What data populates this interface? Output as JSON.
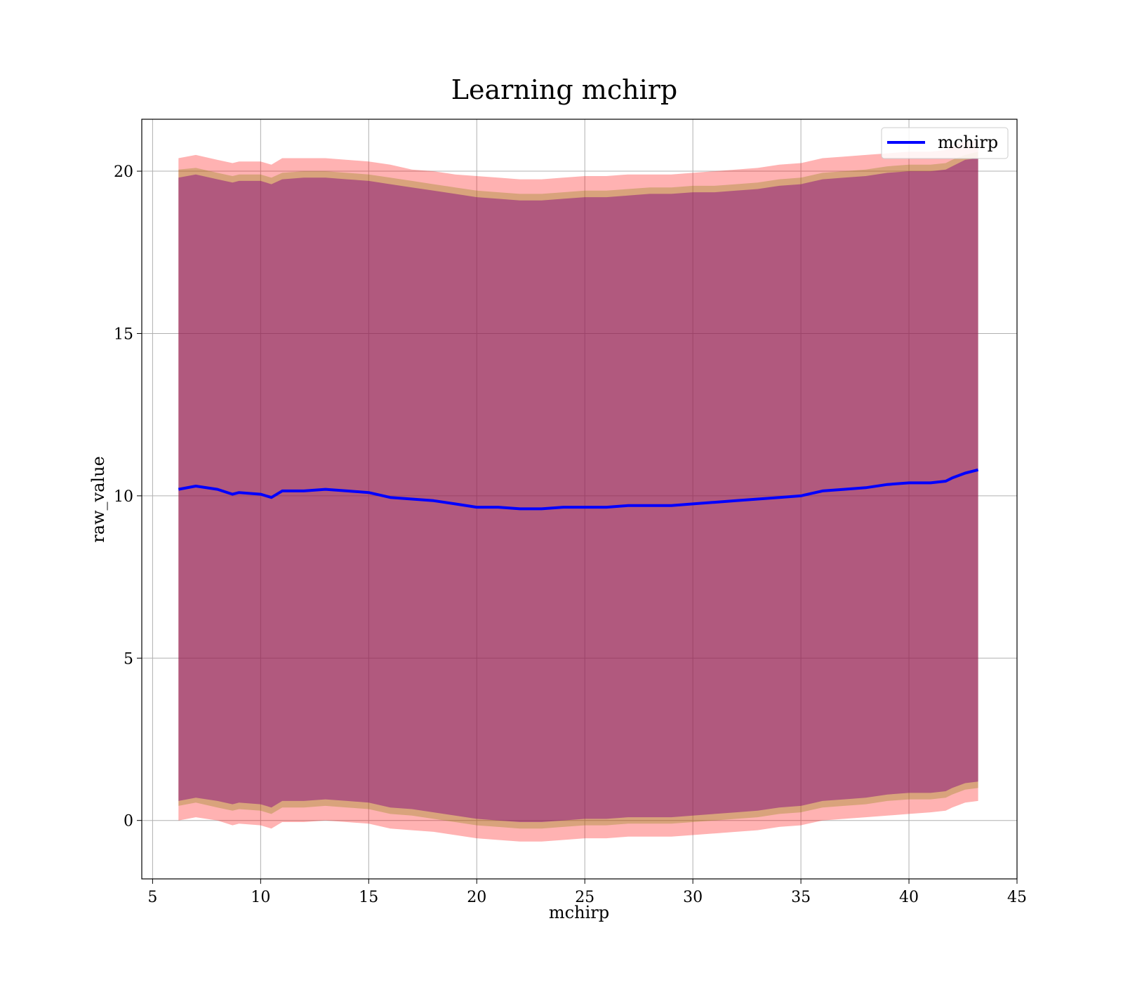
{
  "chart_data": {
    "type": "line",
    "title": "Learning mchirp",
    "xlabel": "mchirp",
    "ylabel": "raw_value",
    "xlim": [
      4.5,
      45
    ],
    "ylim": [
      -1.8,
      21.6
    ],
    "xticks": [
      5,
      10,
      15,
      20,
      25,
      30,
      35,
      40,
      45
    ],
    "yticks": [
      0,
      5,
      10,
      15,
      20
    ],
    "xtick_labels": [
      "5",
      "10",
      "15",
      "20",
      "25",
      "30",
      "35",
      "40",
      "45"
    ],
    "ytick_labels": [
      "0",
      "5",
      "10",
      "15",
      "20"
    ],
    "grid": true,
    "legend": {
      "position": "top-right",
      "entries": [
        "mchirp"
      ]
    },
    "colors": {
      "line": "#0000ff",
      "outer_band": "#ff0000",
      "middle_band": "#808000",
      "inner_band": "#800080",
      "grid": "#b0b0b0"
    },
    "x": [
      6.2,
      7,
      8,
      8.7,
      9,
      10,
      10.5,
      11,
      12,
      13,
      14,
      15,
      16,
      17,
      18,
      19,
      20,
      21,
      22,
      23,
      24,
      25,
      26,
      27,
      28,
      29,
      30,
      31,
      32,
      33,
      34,
      35,
      36,
      37,
      38,
      39,
      40,
      41,
      41.7,
      42,
      42.6,
      43.2
    ],
    "series": [
      {
        "name": "mchirp",
        "values": [
          10.2,
          10.3,
          10.2,
          10.05,
          10.1,
          10.05,
          9.95,
          10.15,
          10.15,
          10.2,
          10.15,
          10.1,
          9.95,
          9.9,
          9.85,
          9.75,
          9.65,
          9.65,
          9.6,
          9.6,
          9.65,
          9.65,
          9.65,
          9.7,
          9.7,
          9.7,
          9.75,
          9.8,
          9.85,
          9.9,
          9.95,
          10.0,
          10.15,
          10.2,
          10.25,
          10.35,
          10.4,
          10.4,
          10.45,
          10.55,
          10.7,
          10.8
        ]
      }
    ],
    "bands": [
      {
        "level": "outer",
        "upper": [
          20.4,
          20.5,
          20.35,
          20.25,
          20.3,
          20.3,
          20.2,
          20.4,
          20.4,
          20.4,
          20.35,
          20.3,
          20.2,
          20.05,
          20.0,
          19.9,
          19.85,
          19.8,
          19.75,
          19.75,
          19.8,
          19.85,
          19.85,
          19.9,
          19.9,
          19.9,
          19.95,
          20.0,
          20.05,
          20.1,
          20.2,
          20.25,
          20.4,
          20.45,
          20.5,
          20.55,
          20.6,
          20.6,
          20.65,
          20.8,
          20.9,
          20.95
        ],
        "lower": [
          0.0,
          0.1,
          0.0,
          -0.15,
          -0.1,
          -0.15,
          -0.25,
          -0.05,
          -0.05,
          0.0,
          -0.05,
          -0.1,
          -0.25,
          -0.3,
          -0.35,
          -0.45,
          -0.55,
          -0.6,
          -0.65,
          -0.65,
          -0.6,
          -0.55,
          -0.55,
          -0.5,
          -0.5,
          -0.5,
          -0.45,
          -0.4,
          -0.35,
          -0.3,
          -0.2,
          -0.15,
          0.0,
          0.05,
          0.1,
          0.15,
          0.2,
          0.25,
          0.3,
          0.4,
          0.55,
          0.6
        ]
      },
      {
        "level": "middle",
        "upper": [
          20.05,
          20.1,
          19.95,
          19.85,
          19.9,
          19.9,
          19.8,
          19.95,
          20.0,
          20.0,
          19.95,
          19.9,
          19.8,
          19.7,
          19.6,
          19.5,
          19.4,
          19.35,
          19.3,
          19.3,
          19.35,
          19.4,
          19.4,
          19.45,
          19.5,
          19.5,
          19.55,
          19.55,
          19.6,
          19.65,
          19.75,
          19.8,
          19.95,
          20.0,
          20.05,
          20.15,
          20.2,
          20.2,
          20.25,
          20.35,
          20.5,
          20.6
        ],
        "lower": [
          0.45,
          0.55,
          0.4,
          0.3,
          0.35,
          0.3,
          0.2,
          0.4,
          0.4,
          0.45,
          0.4,
          0.35,
          0.2,
          0.15,
          0.05,
          -0.05,
          -0.15,
          -0.2,
          -0.25,
          -0.25,
          -0.2,
          -0.15,
          -0.15,
          -0.1,
          -0.1,
          -0.1,
          -0.05,
          0.0,
          0.05,
          0.1,
          0.2,
          0.25,
          0.4,
          0.45,
          0.5,
          0.6,
          0.65,
          0.65,
          0.7,
          0.8,
          0.95,
          1.0
        ]
      },
      {
        "level": "inner",
        "upper": [
          19.8,
          19.9,
          19.75,
          19.65,
          19.7,
          19.7,
          19.6,
          19.75,
          19.8,
          19.8,
          19.75,
          19.7,
          19.6,
          19.5,
          19.4,
          19.3,
          19.2,
          19.15,
          19.1,
          19.1,
          19.15,
          19.2,
          19.2,
          19.25,
          19.3,
          19.3,
          19.35,
          19.35,
          19.4,
          19.45,
          19.55,
          19.6,
          19.75,
          19.8,
          19.85,
          19.95,
          20.0,
          20.0,
          20.05,
          20.15,
          20.35,
          20.4
        ],
        "lower": [
          0.6,
          0.7,
          0.6,
          0.5,
          0.55,
          0.5,
          0.4,
          0.6,
          0.6,
          0.65,
          0.6,
          0.55,
          0.4,
          0.35,
          0.25,
          0.15,
          0.05,
          0.0,
          -0.05,
          -0.05,
          0.0,
          0.05,
          0.05,
          0.1,
          0.1,
          0.1,
          0.15,
          0.2,
          0.25,
          0.3,
          0.4,
          0.45,
          0.6,
          0.65,
          0.7,
          0.8,
          0.85,
          0.85,
          0.9,
          1.0,
          1.15,
          1.2
        ]
      }
    ]
  }
}
